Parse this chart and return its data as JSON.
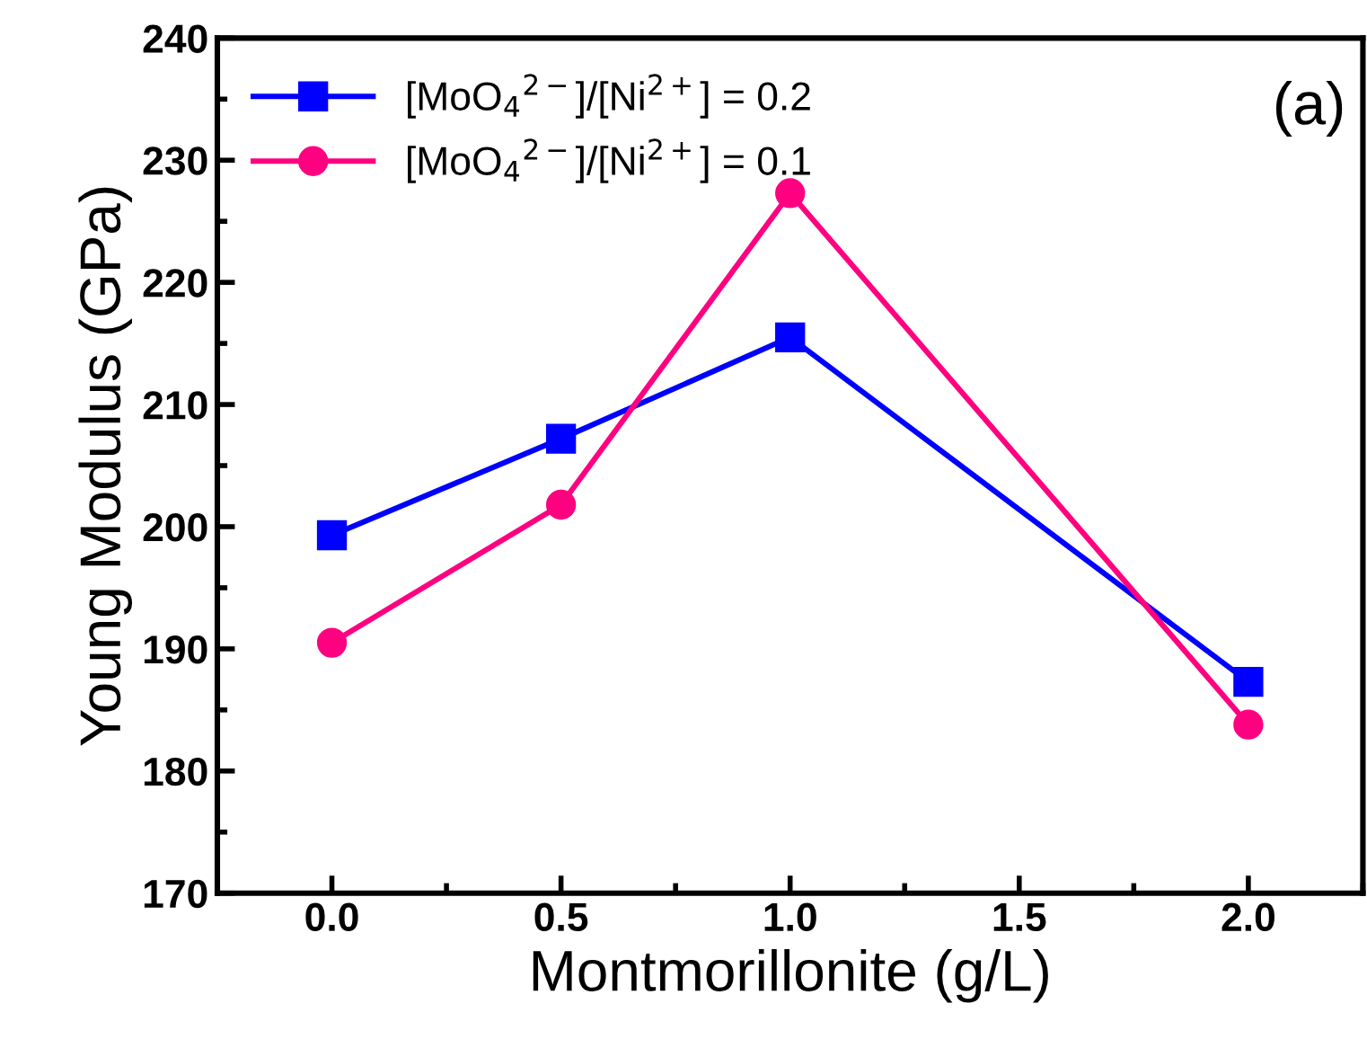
{
  "chart_data": {
    "type": "line",
    "xlabel": "Montmorillonite (g/L)",
    "ylabel": "Young Modulus (GPa)",
    "x": [
      0.0,
      0.5,
      1.0,
      2.0
    ],
    "series": [
      {
        "name": "[MoO$_{4}$$^{2−}$]/[Ni$^{2+}$] = 0.2",
        "color": "#0000ff",
        "marker": "square",
        "values": [
          199.3,
          207.2,
          215.5,
          187.3
        ]
      },
      {
        "name": "[MoO$_{4}$$^{2−}$]/[Ni$^{2+}$] = 0.1",
        "color": "#ff0080",
        "marker": "circle",
        "values": [
          190.5,
          201.8,
          227.3,
          183.8
        ]
      }
    ],
    "xlim": [
      -0.25,
      2.25
    ],
    "xticks": [
      {
        "value": 0,
        "label": "0.0"
      },
      0.5,
      {
        "value": 1,
        "label": "1.0"
      },
      1.5,
      {
        "value": 2,
        "label": "2.0"
      }
    ],
    "ylim": [
      170,
      240
    ],
    "yticks": [
      170,
      180,
      190,
      200,
      210,
      220,
      230,
      240
    ],
    "annotations": [
      "(a)"
    ],
    "legend": "top left",
    "grid": false,
    "line_style": "solid"
  }
}
